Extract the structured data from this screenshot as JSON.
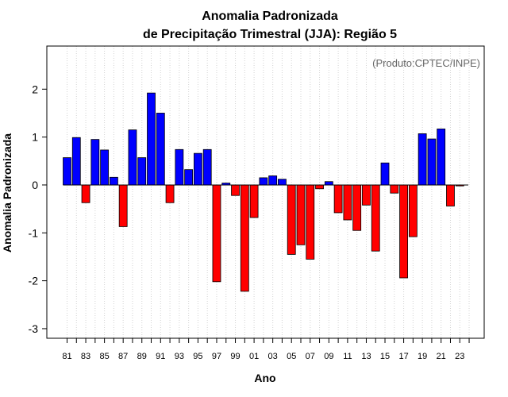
{
  "chart_data": {
    "type": "bar",
    "title_line1": "Anomalia Padronizada",
    "title_line2": "de Precipitação Trimestral (JJA): Região 5",
    "xlabel": "Ano",
    "ylabel": "Anomalia Padronizada",
    "credit": "(Produto:CPTEC/INPE)",
    "ylim": [
      -3.2,
      2.9
    ],
    "yticks": [
      {
        "value": -3,
        "label": "-3"
      },
      {
        "value": -2,
        "label": "-2"
      },
      {
        "value": -1,
        "label": "-1"
      },
      {
        "value": 0,
        "label": "0"
      },
      {
        "value": 1,
        "label": "1"
      },
      {
        "value": 2,
        "label": "2"
      }
    ],
    "categories": [
      "81",
      "82",
      "83",
      "84",
      "85",
      "86",
      "87",
      "88",
      "89",
      "90",
      "91",
      "92",
      "93",
      "94",
      "95",
      "96",
      "97",
      "98",
      "99",
      "00",
      "01",
      "02",
      "03",
      "04",
      "05",
      "06",
      "07",
      "08",
      "09",
      "10",
      "11",
      "12",
      "13",
      "14",
      "15",
      "16",
      "17",
      "18",
      "19",
      "20",
      "21",
      "22",
      "23",
      "24"
    ],
    "xtick_labels": [
      "81",
      "83",
      "85",
      "87",
      "89",
      "91",
      "93",
      "95",
      "97",
      "99",
      "01",
      "03",
      "05",
      "07",
      "09",
      "11",
      "13",
      "15",
      "17",
      "19",
      "21",
      "23"
    ],
    "values": [
      0.57,
      0.99,
      -0.37,
      0.95,
      0.73,
      0.16,
      -0.87,
      1.15,
      0.57,
      1.92,
      1.5,
      -0.37,
      0.74,
      0.32,
      0.66,
      0.74,
      -2.02,
      0.04,
      -0.22,
      -2.22,
      -0.68,
      0.15,
      0.19,
      0.12,
      -1.45,
      -1.25,
      -1.55,
      -0.08,
      0.07,
      -0.58,
      -0.73,
      -0.95,
      -0.42,
      -1.38,
      0.46,
      -0.17,
      -1.94,
      -1.08,
      1.07,
      0.96,
      1.17,
      -0.44,
      -0.02,
      0
    ],
    "colors": {
      "positive": "#0000ff",
      "negative": "#ff0000",
      "outline": "#000000",
      "grid": "#d3d3d3"
    }
  }
}
